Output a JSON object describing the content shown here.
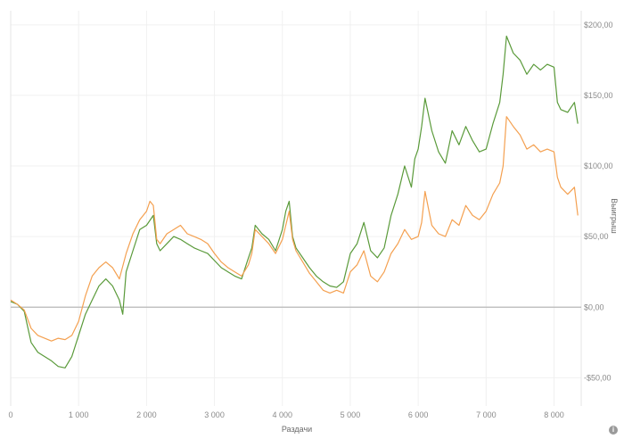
{
  "chart_data": {
    "type": "line",
    "title": "",
    "xlabel": "Раздачи",
    "ylabel": "Выигрыш",
    "xlim": [
      0,
      8400
    ],
    "ylim": [
      -70,
      210
    ],
    "grid": true,
    "x_ticks": [
      {
        "value": 0,
        "label": "0"
      },
      {
        "value": 1000,
        "label": "1 000"
      },
      {
        "value": 2000,
        "label": "2 000"
      },
      {
        "value": 3000,
        "label": "3 000"
      },
      {
        "value": 4000,
        "label": "4 000"
      },
      {
        "value": 5000,
        "label": "5 000"
      },
      {
        "value": 6000,
        "label": "6 000"
      },
      {
        "value": 7000,
        "label": "7 000"
      },
      {
        "value": 8000,
        "label": "8 000"
      }
    ],
    "y_ticks": [
      {
        "value": 200,
        "label": "$200,00"
      },
      {
        "value": 150,
        "label": "$150,00"
      },
      {
        "value": 100,
        "label": "$100,00"
      },
      {
        "value": 50,
        "label": "$50,00"
      },
      {
        "value": 0,
        "label": "$0,00"
      },
      {
        "value": -50,
        "label": "-$50,00"
      }
    ],
    "series": [
      {
        "color": "#5a9a3a",
        "points": [
          [
            0,
            4
          ],
          [
            100,
            2
          ],
          [
            200,
            -3
          ],
          [
            300,
            -25
          ],
          [
            400,
            -32
          ],
          [
            500,
            -35
          ],
          [
            600,
            -38
          ],
          [
            700,
            -42
          ],
          [
            800,
            -43
          ],
          [
            900,
            -35
          ],
          [
            1000,
            -20
          ],
          [
            1100,
            -5
          ],
          [
            1200,
            5
          ],
          [
            1300,
            15
          ],
          [
            1400,
            20
          ],
          [
            1500,
            15
          ],
          [
            1600,
            5
          ],
          [
            1650,
            -5
          ],
          [
            1700,
            25
          ],
          [
            1800,
            40
          ],
          [
            1900,
            55
          ],
          [
            2000,
            58
          ],
          [
            2100,
            65
          ],
          [
            2150,
            45
          ],
          [
            2200,
            40
          ],
          [
            2300,
            45
          ],
          [
            2400,
            50
          ],
          [
            2500,
            48
          ],
          [
            2600,
            45
          ],
          [
            2700,
            42
          ],
          [
            2800,
            40
          ],
          [
            2900,
            38
          ],
          [
            3000,
            33
          ],
          [
            3100,
            28
          ],
          [
            3200,
            25
          ],
          [
            3300,
            22
          ],
          [
            3400,
            20
          ],
          [
            3500,
            35
          ],
          [
            3550,
            42
          ],
          [
            3600,
            58
          ],
          [
            3700,
            52
          ],
          [
            3800,
            48
          ],
          [
            3900,
            40
          ],
          [
            4000,
            55
          ],
          [
            4050,
            68
          ],
          [
            4100,
            75
          ],
          [
            4150,
            50
          ],
          [
            4200,
            42
          ],
          [
            4300,
            35
          ],
          [
            4400,
            28
          ],
          [
            4500,
            22
          ],
          [
            4600,
            18
          ],
          [
            4700,
            15
          ],
          [
            4800,
            14
          ],
          [
            4900,
            18
          ],
          [
            5000,
            38
          ],
          [
            5100,
            45
          ],
          [
            5200,
            60
          ],
          [
            5300,
            40
          ],
          [
            5400,
            35
          ],
          [
            5500,
            42
          ],
          [
            5600,
            65
          ],
          [
            5700,
            80
          ],
          [
            5800,
            100
          ],
          [
            5900,
            85
          ],
          [
            5950,
            105
          ],
          [
            6000,
            112
          ],
          [
            6050,
            128
          ],
          [
            6100,
            148
          ],
          [
            6200,
            125
          ],
          [
            6300,
            110
          ],
          [
            6400,
            102
          ],
          [
            6500,
            125
          ],
          [
            6600,
            115
          ],
          [
            6700,
            128
          ],
          [
            6800,
            118
          ],
          [
            6900,
            110
          ],
          [
            7000,
            112
          ],
          [
            7100,
            130
          ],
          [
            7200,
            145
          ],
          [
            7250,
            165
          ],
          [
            7300,
            192
          ],
          [
            7400,
            180
          ],
          [
            7500,
            175
          ],
          [
            7600,
            165
          ],
          [
            7700,
            172
          ],
          [
            7800,
            168
          ],
          [
            7900,
            172
          ],
          [
            8000,
            170
          ],
          [
            8050,
            145
          ],
          [
            8100,
            140
          ],
          [
            8200,
            138
          ],
          [
            8300,
            145
          ],
          [
            8350,
            130
          ]
        ]
      },
      {
        "color": "#f4a050",
        "points": [
          [
            0,
            5
          ],
          [
            100,
            2
          ],
          [
            200,
            -2
          ],
          [
            300,
            -15
          ],
          [
            400,
            -20
          ],
          [
            500,
            -22
          ],
          [
            600,
            -24
          ],
          [
            700,
            -22
          ],
          [
            800,
            -23
          ],
          [
            900,
            -20
          ],
          [
            1000,
            -10
          ],
          [
            1100,
            8
          ],
          [
            1200,
            22
          ],
          [
            1300,
            28
          ],
          [
            1400,
            32
          ],
          [
            1500,
            28
          ],
          [
            1600,
            20
          ],
          [
            1700,
            38
          ],
          [
            1800,
            52
          ],
          [
            1900,
            62
          ],
          [
            2000,
            68
          ],
          [
            2050,
            75
          ],
          [
            2100,
            72
          ],
          [
            2150,
            48
          ],
          [
            2200,
            45
          ],
          [
            2300,
            52
          ],
          [
            2400,
            55
          ],
          [
            2500,
            58
          ],
          [
            2600,
            52
          ],
          [
            2700,
            50
          ],
          [
            2800,
            48
          ],
          [
            2900,
            45
          ],
          [
            3000,
            38
          ],
          [
            3100,
            32
          ],
          [
            3200,
            28
          ],
          [
            3300,
            25
          ],
          [
            3400,
            22
          ],
          [
            3500,
            30
          ],
          [
            3550,
            38
          ],
          [
            3600,
            55
          ],
          [
            3700,
            50
          ],
          [
            3800,
            45
          ],
          [
            3900,
            38
          ],
          [
            4000,
            48
          ],
          [
            4100,
            68
          ],
          [
            4150,
            48
          ],
          [
            4200,
            40
          ],
          [
            4300,
            32
          ],
          [
            4400,
            24
          ],
          [
            4500,
            18
          ],
          [
            4600,
            12
          ],
          [
            4700,
            10
          ],
          [
            4800,
            12
          ],
          [
            4900,
            10
          ],
          [
            5000,
            25
          ],
          [
            5100,
            30
          ],
          [
            5200,
            40
          ],
          [
            5300,
            22
          ],
          [
            5400,
            18
          ],
          [
            5500,
            25
          ],
          [
            5600,
            38
          ],
          [
            5700,
            45
          ],
          [
            5800,
            55
          ],
          [
            5900,
            48
          ],
          [
            6000,
            50
          ],
          [
            6050,
            60
          ],
          [
            6100,
            82
          ],
          [
            6200,
            58
          ],
          [
            6300,
            52
          ],
          [
            6400,
            50
          ],
          [
            6500,
            62
          ],
          [
            6600,
            58
          ],
          [
            6700,
            72
          ],
          [
            6800,
            65
          ],
          [
            6900,
            62
          ],
          [
            7000,
            68
          ],
          [
            7100,
            80
          ],
          [
            7200,
            88
          ],
          [
            7250,
            100
          ],
          [
            7300,
            135
          ],
          [
            7400,
            128
          ],
          [
            7500,
            122
          ],
          [
            7600,
            112
          ],
          [
            7700,
            115
          ],
          [
            7800,
            110
          ],
          [
            7900,
            112
          ],
          [
            8000,
            110
          ],
          [
            8050,
            92
          ],
          [
            8100,
            85
          ],
          [
            8200,
            80
          ],
          [
            8300,
            85
          ],
          [
            8350,
            65
          ]
        ]
      }
    ]
  }
}
